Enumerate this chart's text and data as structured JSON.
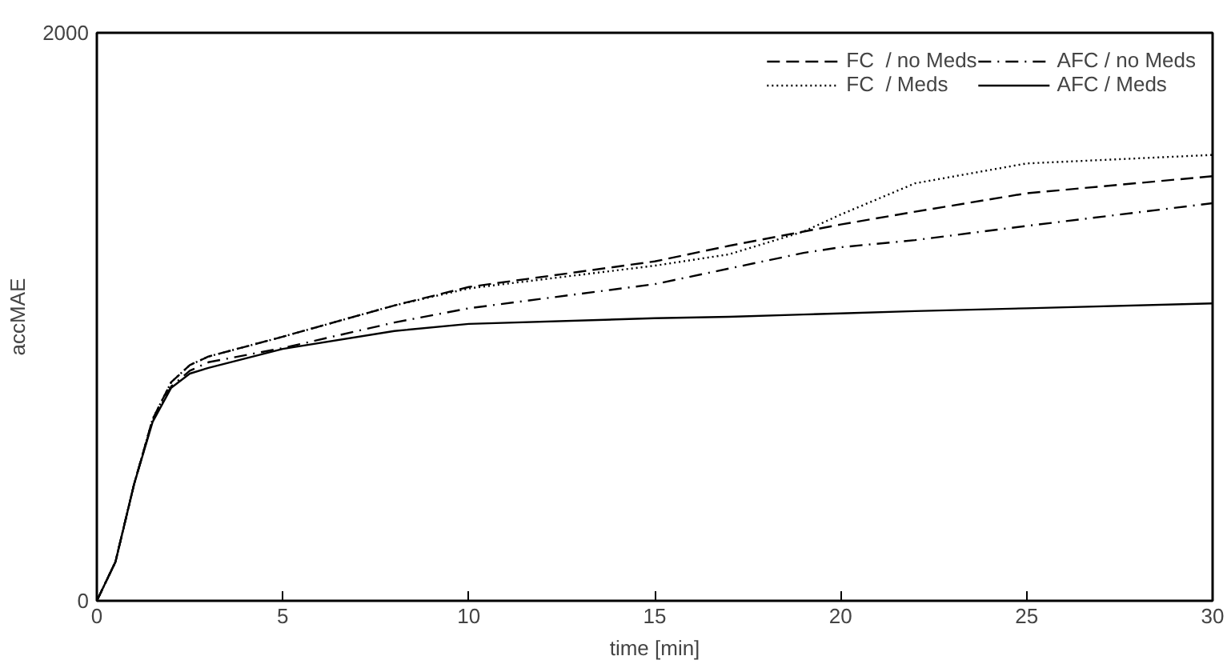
{
  "chart_data": {
    "type": "line",
    "xlabel": "time [min]",
    "ylabel": "accMAE",
    "x": [
      0,
      0.5,
      1,
      1.5,
      2,
      2.5,
      3,
      5,
      8,
      10,
      15,
      17,
      19,
      20,
      22,
      25,
      30
    ],
    "series": [
      {
        "name": "FC  / no Meds",
        "color": "#000000",
        "line_style": "dashed",
        "values": [
          0,
          137,
          410,
          640,
          770,
          830,
          860,
          930,
          1040,
          1105,
          1195,
          1250,
          1300,
          1325,
          1370,
          1435,
          1495
        ]
      },
      {
        "name": "FC  / Meds",
        "color": "#000000",
        "line_style": "dotted",
        "values": [
          0,
          137,
          410,
          640,
          770,
          830,
          860,
          930,
          1040,
          1100,
          1180,
          1220,
          1300,
          1360,
          1470,
          1540,
          1570
        ]
      },
      {
        "name": "AFC / no Meds",
        "color": "#000000",
        "line_style": "dashdot",
        "values": [
          0,
          137,
          410,
          635,
          755,
          810,
          840,
          890,
          980,
          1030,
          1115,
          1170,
          1225,
          1245,
          1270,
          1320,
          1400
        ]
      },
      {
        "name": "AFC / Meds",
        "color": "#000000",
        "line_style": "solid",
        "values": [
          0,
          137,
          410,
          630,
          750,
          800,
          820,
          887,
          950,
          975,
          995,
          1000,
          1008,
          1012,
          1020,
          1030,
          1047
        ]
      }
    ],
    "xlim": [
      0,
      30
    ],
    "xticks": [
      0,
      5,
      10,
      15,
      20,
      25,
      30
    ],
    "ylim": [
      0,
      2000
    ],
    "yticks": [
      0,
      2000
    ],
    "grid": false,
    "legend": "top right",
    "marker": "none"
  }
}
